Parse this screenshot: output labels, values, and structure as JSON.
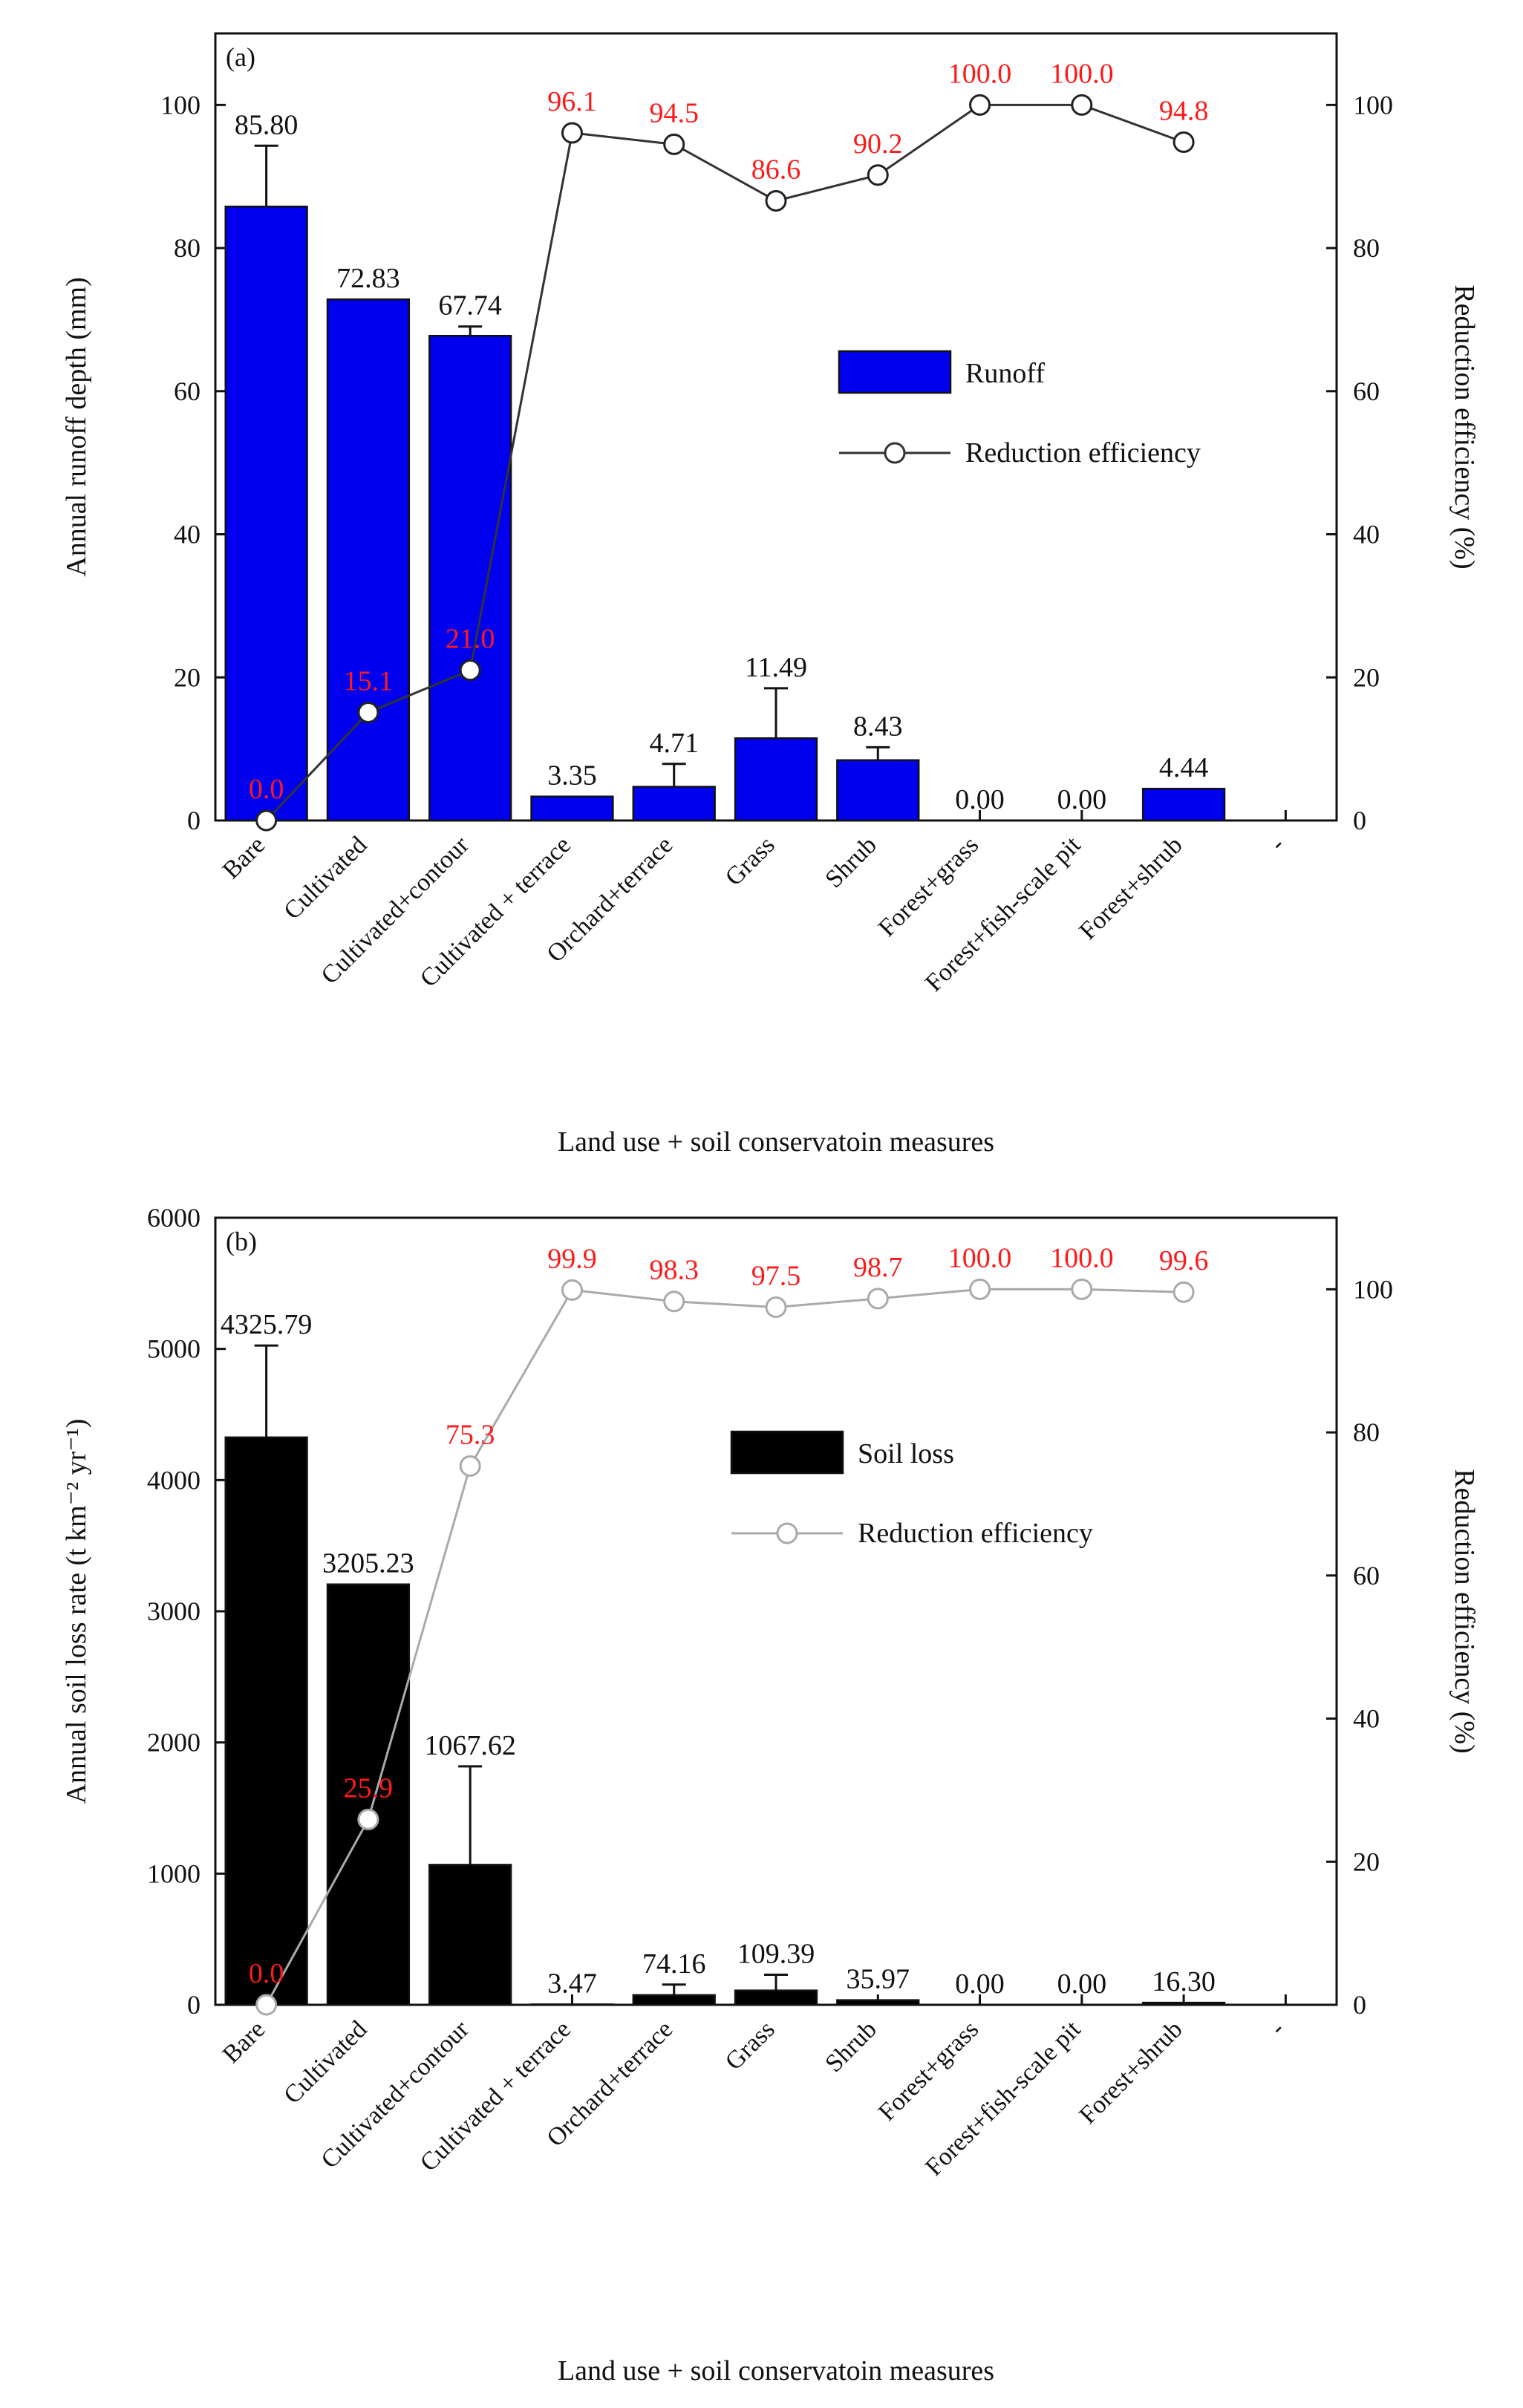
{
  "chart_data": [
    {
      "type": "bar",
      "panel_label": "(a)",
      "categories": [
        "Bare",
        "Cultivated",
        "Cultivated+contour",
        "Cultivated + terrace",
        "Orchard+terrace",
        "Grass",
        "Shrub",
        "Forest+grass",
        "Forest+fish-scale pit",
        "Forest+shrub"
      ],
      "extra_category_tick": "-",
      "xlabel": "Land use + soil conservatoin measures",
      "ylabel": "Annual runoff depth (mm)",
      "ylabel_right": "Reduction efficiency (%)",
      "ylim": [
        0,
        110
      ],
      "ylim_right": [
        0,
        110
      ],
      "yticks": [
        0,
        20,
        40,
        60,
        80,
        100
      ],
      "yticks_right": [
        0,
        20,
        40,
        60,
        80,
        100
      ],
      "bar_color": "#0000ee",
      "line_color": "#333333",
      "series": [
        {
          "name": "Runoff",
          "kind": "bar",
          "values": [
            85.8,
            72.83,
            67.74,
            3.35,
            4.71,
            11.49,
            8.43,
            0.0,
            0.0,
            4.44
          ],
          "labels": [
            "85.80",
            "72.83",
            "67.74",
            "3.35",
            "4.71",
            "11.49",
            "8.43",
            "0.00",
            "0.00",
            "4.44"
          ],
          "errors": [
            8.5,
            0,
            1.3,
            0,
            3.2,
            7.0,
            1.8,
            0,
            0,
            0
          ]
        },
        {
          "name": "Reduction efficiency",
          "kind": "line",
          "axis": "right",
          "values": [
            0.0,
            15.1,
            21.0,
            96.1,
            94.5,
            86.6,
            90.2,
            100.0,
            100.0,
            94.8
          ],
          "labels": [
            "0.0",
            "15.1",
            "21.0",
            "96.1",
            "94.5",
            "86.6",
            "90.2",
            "100.0",
            "100.0",
            "94.8"
          ]
        }
      ],
      "legend": [
        "Runoff",
        "Reduction efficiency"
      ],
      "legend_position": "center-right"
    },
    {
      "type": "bar",
      "panel_label": "(b)",
      "categories": [
        "Bare",
        "Cultivated",
        "Cultivated+contour",
        "Cultivated + terrace",
        "Orchard+terrace",
        "Grass",
        "Shrub",
        "Forest+grass",
        "Forest+fish-scale pit",
        "Forest+shrub"
      ],
      "extra_category_tick": "-",
      "xlabel": "Land use + soil conservatoin measures",
      "ylabel": "Annual soil loss rate (t km⁻² yr⁻¹)",
      "ylabel_right": "Reduction efficiency (%)",
      "ylim": [
        0,
        6000
      ],
      "ylim_right": [
        0,
        110
      ],
      "yticks": [
        0,
        1000,
        2000,
        3000,
        4000,
        5000,
        6000
      ],
      "yticks_right": [
        0,
        20,
        40,
        60,
        80,
        100
      ],
      "bar_color": "#000000",
      "line_color": "#aaaaaa",
      "series": [
        {
          "name": "Soil loss",
          "kind": "bar",
          "values": [
            4325.79,
            3205.23,
            1067.62,
            3.47,
            74.16,
            109.39,
            35.97,
            0.0,
            0.0,
            16.3
          ],
          "labels": [
            "4325.79",
            "3205.23",
            "1067.62",
            "3.47",
            "74.16",
            "109.39",
            "35.97",
            "0.00",
            "0.00",
            "16.30"
          ],
          "errors": [
            700,
            0,
            750,
            0,
            80,
            120,
            0,
            0,
            0,
            0
          ]
        },
        {
          "name": "Reduction efficiency",
          "kind": "line",
          "axis": "right",
          "values": [
            0.0,
            25.9,
            75.3,
            99.9,
            98.3,
            97.5,
            98.7,
            100.0,
            100.0,
            99.6
          ],
          "labels": [
            "0.0",
            "25.9",
            "75.3",
            "99.9",
            "98.3",
            "97.5",
            "98.7",
            "100.0",
            "100.0",
            "99.6"
          ]
        }
      ],
      "legend": [
        "Soil loss",
        "Reduction efficiency"
      ],
      "legend_position": "center-right"
    }
  ]
}
